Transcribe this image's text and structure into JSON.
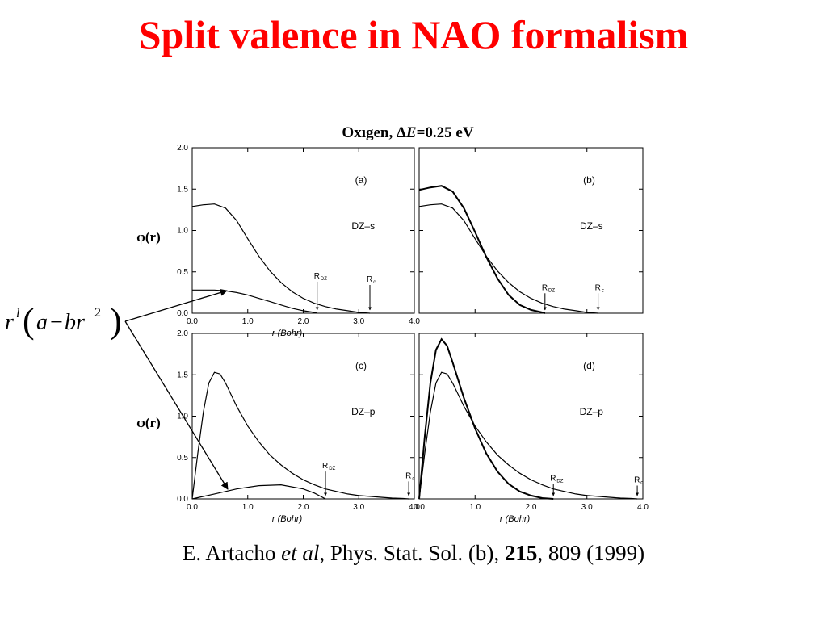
{
  "slide": {
    "title": "Split valence in NAO formalism",
    "citation": {
      "authors": "E. Artacho",
      "etal": "et al",
      "journal": ", Phys. Stat. Sol. (b), ",
      "volume": "215",
      "pages_year": ", 809 (1999)"
    },
    "formula": {
      "r": "r",
      "l": "l",
      "open": "(",
      "a": "a",
      "minus": "−",
      "br": "br",
      "sq": "2",
      "close": ")"
    }
  },
  "figure_title": {
    "element": "Oxıgen, ",
    "delta": "Δ",
    "E": "E",
    "rest": "=0.25  eV"
  },
  "ylabel": "φ(r)",
  "colors": {
    "title": "#ff0000",
    "curves": "#000000",
    "text": "#000000"
  },
  "chart_data": [
    {
      "id": "a",
      "type": "line",
      "panel_label": "(a)",
      "note": "DZ–s",
      "xlim": [
        0,
        4.0
      ],
      "ylim": [
        0,
        2.0
      ],
      "x_ticks": [
        "0.0",
        "1.0",
        "2.0",
        "3.0",
        "4.0"
      ],
      "y_ticks": [
        "0.0",
        "0.5",
        "1.0",
        "1.5",
        "2.0"
      ],
      "xlabel": "r (Bohr)",
      "markers": [
        {
          "label": "R",
          "sub": "DZ",
          "x": 2.25,
          "y": 0.42
        },
        {
          "label": "R",
          "sub": "c",
          "x": 3.2,
          "y": 0.38
        }
      ],
      "series": [
        {
          "x": [
            0,
            0.2,
            0.4,
            0.6,
            0.8,
            1.0,
            1.2,
            1.4,
            1.6,
            1.8,
            2.0,
            2.2,
            2.4,
            2.6,
            2.8,
            3.0,
            3.2
          ],
          "y": [
            1.29,
            1.31,
            1.32,
            1.27,
            1.12,
            0.9,
            0.69,
            0.51,
            0.37,
            0.26,
            0.18,
            0.12,
            0.08,
            0.05,
            0.03,
            0.01,
            0.0
          ]
        },
        {
          "x": [
            0,
            0.2,
            0.4,
            0.6,
            0.8,
            1.0,
            1.2,
            1.4,
            1.6,
            1.8,
            2.0,
            2.2,
            2.25
          ],
          "y": [
            0.28,
            0.28,
            0.28,
            0.27,
            0.25,
            0.22,
            0.18,
            0.14,
            0.1,
            0.06,
            0.03,
            0.01,
            0.0
          ]
        }
      ]
    },
    {
      "id": "b",
      "type": "line",
      "panel_label": "(b)",
      "note": "DZ–s",
      "xlim": [
        0,
        4.0
      ],
      "ylim": [
        0,
        2.0
      ],
      "x_ticks": [],
      "y_ticks": [],
      "xlabel": "",
      "markers": [
        {
          "label": "R",
          "sub": "DZ",
          "x": 2.25,
          "y": 0.28
        },
        {
          "label": "R",
          "sub": "c",
          "x": 3.2,
          "y": 0.28
        }
      ],
      "series": [
        {
          "x": [
            0,
            0.2,
            0.4,
            0.6,
            0.8,
            1.0,
            1.2,
            1.4,
            1.6,
            1.8,
            2.0,
            2.2,
            2.4,
            2.6,
            2.8,
            3.0,
            3.2
          ],
          "y": [
            1.29,
            1.31,
            1.32,
            1.27,
            1.12,
            0.9,
            0.69,
            0.51,
            0.37,
            0.26,
            0.18,
            0.12,
            0.08,
            0.05,
            0.03,
            0.01,
            0.0
          ]
        },
        {
          "x": [
            0,
            0.2,
            0.4,
            0.6,
            0.8,
            1.0,
            1.2,
            1.4,
            1.6,
            1.8,
            2.0,
            2.2,
            2.25
          ],
          "y": [
            1.49,
            1.52,
            1.54,
            1.47,
            1.27,
            0.98,
            0.68,
            0.42,
            0.22,
            0.1,
            0.04,
            0.01,
            0.0
          ]
        }
      ]
    },
    {
      "id": "c",
      "type": "line",
      "panel_label": "(c)",
      "note": "DZ–p",
      "xlim": [
        0,
        4.0
      ],
      "ylim": [
        0,
        2.0
      ],
      "x_ticks": [
        "0.0",
        "1.0",
        "2.0",
        "3.0",
        "4.0"
      ],
      "y_ticks": [
        "0.0",
        "0.5",
        "1.0",
        "1.5",
        "2.0"
      ],
      "xlabel": "r (Bohr)",
      "markers": [
        {
          "label": "R",
          "sub": "DZ",
          "x": 2.4,
          "y": 0.37
        },
        {
          "label": "R",
          "sub": "c",
          "x": 3.9,
          "y": 0.25
        }
      ],
      "series": [
        {
          "x": [
            0,
            0.1,
            0.2,
            0.3,
            0.4,
            0.5,
            0.6,
            0.8,
            1.0,
            1.2,
            1.4,
            1.6,
            1.8,
            2.0,
            2.2,
            2.4,
            2.6,
            2.8,
            3.0,
            3.2,
            3.4,
            3.6,
            3.8,
            3.9
          ],
          "y": [
            0,
            0.55,
            1.05,
            1.4,
            1.53,
            1.51,
            1.4,
            1.12,
            0.88,
            0.69,
            0.53,
            0.41,
            0.31,
            0.23,
            0.17,
            0.12,
            0.09,
            0.06,
            0.04,
            0.03,
            0.02,
            0.01,
            0.005,
            0.0
          ]
        },
        {
          "x": [
            0,
            0.4,
            0.8,
            1.2,
            1.6,
            2.0,
            2.2,
            2.4
          ],
          "y": [
            0,
            0.06,
            0.12,
            0.16,
            0.17,
            0.12,
            0.07,
            0.0
          ]
        }
      ]
    },
    {
      "id": "d",
      "type": "line",
      "panel_label": "(d)",
      "note": "DZ–p",
      "xlim": [
        0,
        4.0
      ],
      "ylim": [
        0,
        2.0
      ],
      "x_ticks": [
        "0.0",
        "1.0",
        "2.0",
        "3.0",
        "4.0"
      ],
      "y_ticks": [],
      "xlabel": "r (Bohr)",
      "markers": [
        {
          "label": "R",
          "sub": "DZ",
          "x": 2.4,
          "y": 0.22
        },
        {
          "label": "R",
          "sub": "c",
          "x": 3.9,
          "y": 0.2
        }
      ],
      "series": [
        {
          "x": [
            0,
            0.1,
            0.2,
            0.3,
            0.4,
            0.5,
            0.6,
            0.8,
            1.0,
            1.2,
            1.4,
            1.6,
            1.8,
            2.0,
            2.2,
            2.4,
            2.6,
            2.8,
            3.0,
            3.2,
            3.4,
            3.6,
            3.8,
            3.9
          ],
          "y": [
            0,
            0.55,
            1.05,
            1.4,
            1.53,
            1.51,
            1.4,
            1.12,
            0.88,
            0.69,
            0.53,
            0.41,
            0.31,
            0.23,
            0.17,
            0.12,
            0.09,
            0.06,
            0.04,
            0.03,
            0.02,
            0.01,
            0.005,
            0.0
          ]
        },
        {
          "x": [
            0,
            0.1,
            0.2,
            0.3,
            0.4,
            0.5,
            0.6,
            0.8,
            1.0,
            1.2,
            1.4,
            1.6,
            1.8,
            2.0,
            2.2,
            2.4
          ],
          "y": [
            0,
            0.75,
            1.4,
            1.8,
            1.93,
            1.85,
            1.65,
            1.22,
            0.85,
            0.55,
            0.33,
            0.18,
            0.09,
            0.04,
            0.01,
            0.0
          ]
        }
      ]
    }
  ]
}
